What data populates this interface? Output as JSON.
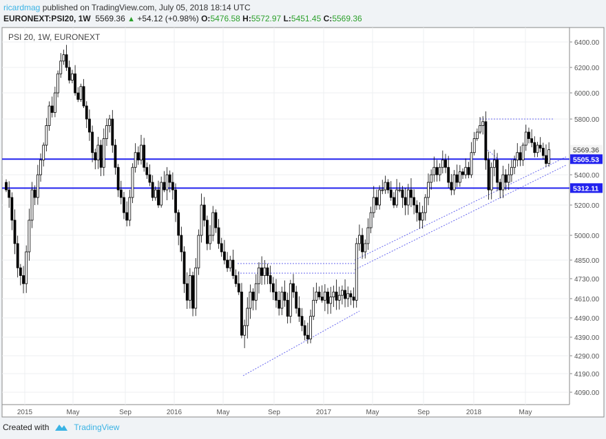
{
  "header": {
    "user": "ricardmag",
    "published": "published on TradingView.com, July 05, 2018 18:14 UTC",
    "symbol": "EURONEXT:PSI20, 1W",
    "last": "5569.36",
    "change": "+54.12 (+0.98%)",
    "o_label": "O:",
    "o": "5476.58",
    "h_label": "H:",
    "h": "5572.97",
    "l_label": "L:",
    "l": "5451.45",
    "c_label": "C:",
    "c": "5569.36"
  },
  "footer": {
    "created_with": "Created with",
    "brand": "TradingView"
  },
  "colors": {
    "level_line": "#2222ee",
    "trend_line": "#6666ee",
    "candle_down": "#000000",
    "candle_up": "#ffffff",
    "positive": "#2ca02c"
  },
  "chart_data": {
    "type": "candlestick",
    "title": "PSI 20, 1W, EURONEXT",
    "x_ticks": [
      "2015",
      "May",
      "Sep",
      "2016",
      "May",
      "Sep",
      "2017",
      "May",
      "Sep",
      "2018",
      "May"
    ],
    "y_ticks": [
      "6400.00",
      "6200.00",
      "6000.00",
      "5800.00",
      "5400.00",
      "5200.00",
      "5000.00",
      "4850.00",
      "4730.00",
      "4610.00",
      "4490.00",
      "4390.00",
      "4290.00",
      "4190.00",
      "4090.00"
    ],
    "price_labels": [
      {
        "value": "5569.36",
        "kind": "last"
      },
      {
        "value": "5505.53",
        "kind": "level"
      },
      {
        "value": "5312.11",
        "kind": "level"
      }
    ],
    "levels": [
      5505.53,
      5312.11
    ],
    "weekly_closes": [
      5300,
      5250,
      5100,
      4950,
      4800,
      4750,
      4700,
      4900,
      5100,
      5300,
      5250,
      5400,
      5500,
      5600,
      5750,
      5900,
      5850,
      6000,
      6150,
      6250,
      6300,
      6200,
      6100,
      6150,
      6000,
      5950,
      6050,
      5900,
      5800,
      5700,
      5550,
      5500,
      5600,
      5450,
      5650,
      5750,
      5800,
      5600,
      5450,
      5300,
      5250,
      5150,
      5100,
      5250,
      5450,
      5550,
      5500,
      5600,
      5450,
      5400,
      5350,
      5250,
      5300,
      5200,
      5350,
      5300,
      5400,
      5350,
      5300,
      5150,
      5000,
      4900,
      4700,
      4600,
      4750,
      4550,
      4800,
      5000,
      5200,
      5100,
      4950,
      5000,
      5150,
      5050,
      4950,
      4900,
      4850,
      4800,
      4850,
      4750,
      4700,
      4650,
      4400,
      4450,
      4550,
      4650,
      4600,
      4700,
      4800,
      4750,
      4800,
      4750,
      4700,
      4650,
      4600,
      4550,
      4650,
      4600,
      4500,
      4700,
      4650,
      4550,
      4500,
      4450,
      4400,
      4380,
      4500,
      4600,
      4650,
      4620,
      4600,
      4650,
      4580,
      4620,
      4650,
      4600,
      4630,
      4660,
      4610,
      4640,
      4620,
      4600,
      4950,
      5000,
      4900,
      4950,
      5050,
      5150,
      5250,
      5200,
      5300,
      5300,
      5350,
      5300,
      5250,
      5200,
      5300,
      5300,
      5250,
      5200,
      5300,
      5250,
      5200,
      5150,
      5100,
      5150,
      5250,
      5350,
      5400,
      5450,
      5400,
      5450,
      5500,
      5450,
      5350,
      5300,
      5400,
      5350,
      5420,
      5400,
      5450,
      5400,
      5550,
      5650,
      5700,
      5750,
      5780,
      5500,
      5300,
      5450,
      5500,
      5350,
      5300,
      5400,
      5350,
      5400,
      5450,
      5500,
      5550,
      5500,
      5600,
      5700,
      5650,
      5620,
      5550,
      5600,
      5580,
      5530,
      5476.58,
      5569.36
    ]
  }
}
